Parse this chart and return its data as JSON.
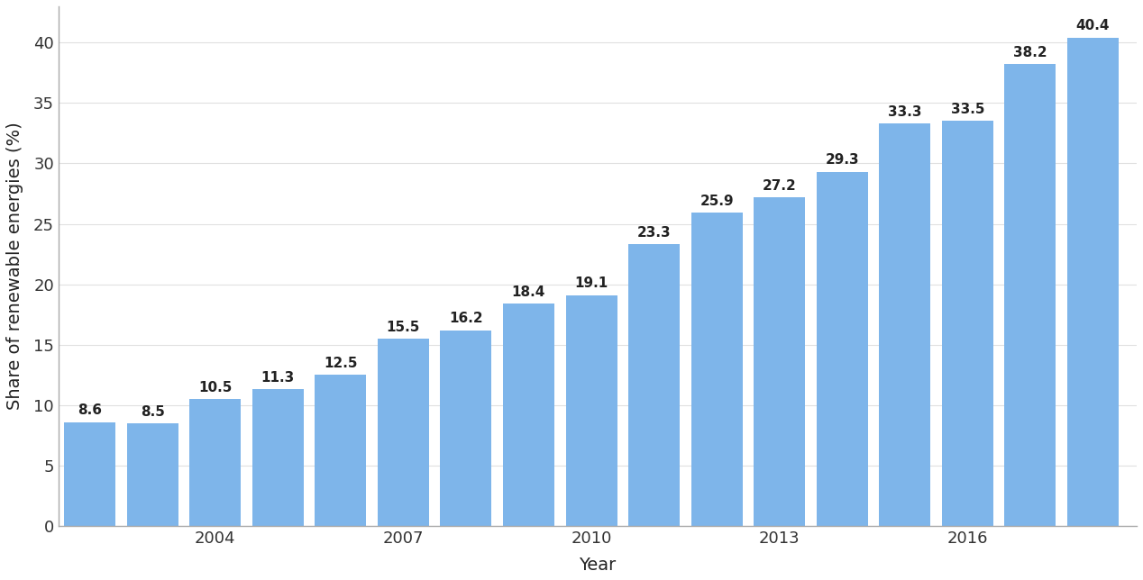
{
  "years": [
    2002,
    2003,
    2004,
    2005,
    2006,
    2007,
    2008,
    2009,
    2010,
    2011,
    2012,
    2013,
    2014,
    2015,
    2016,
    2017,
    2018
  ],
  "values": [
    8.6,
    8.5,
    10.5,
    11.3,
    12.5,
    15.5,
    16.2,
    18.4,
    19.1,
    23.3,
    25.9,
    27.2,
    29.3,
    33.3,
    33.5,
    38.2,
    40.4
  ],
  "bar_color": "#7EB5EA",
  "xlabel": "Year",
  "ylabel": "Share of renewable energies (%)",
  "ylim": [
    0,
    43
  ],
  "yticks": [
    0,
    5,
    10,
    15,
    20,
    25,
    30,
    35,
    40
  ],
  "xticks": [
    2004,
    2007,
    2010,
    2013,
    2016
  ],
  "background_color": "#ffffff",
  "grid_color": "#e0e0e0",
  "label_fontsize": 14,
  "tick_fontsize": 13,
  "value_label_fontsize": 11,
  "bar_width": 0.82
}
